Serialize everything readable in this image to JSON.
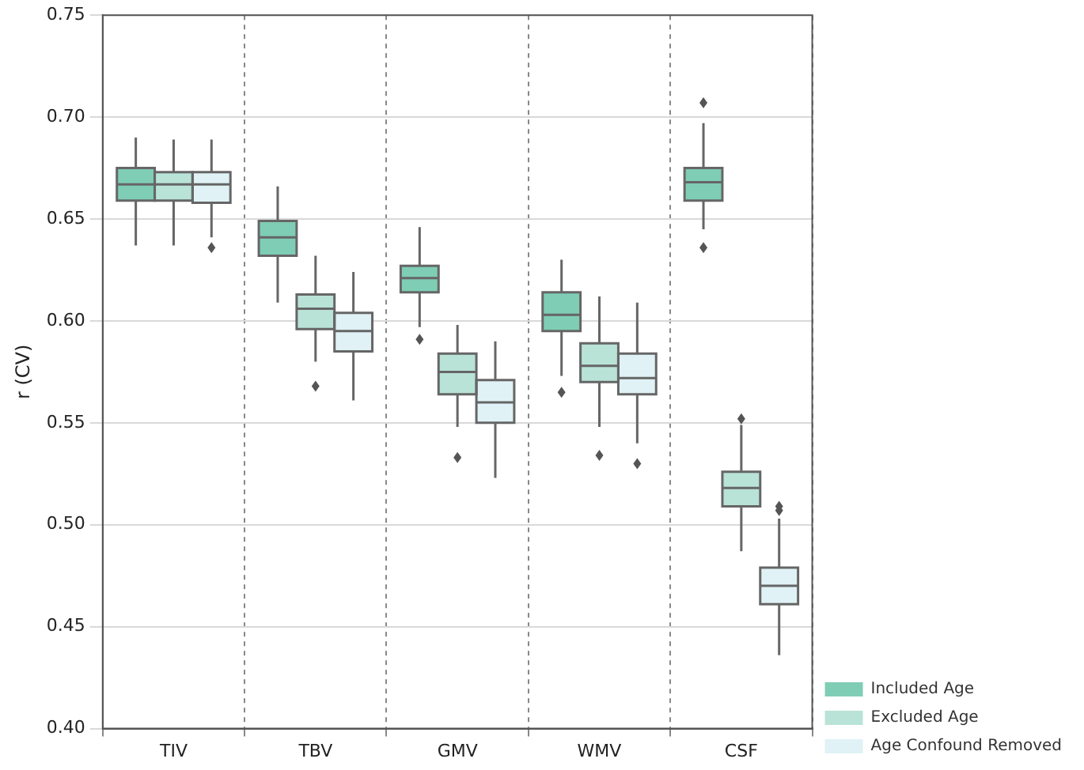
{
  "chart_data": {
    "type": "box",
    "ylabel": "r (CV)",
    "categories": [
      "TIV",
      "TBV",
      "GMV",
      "WMV",
      "CSF"
    ],
    "ylim": [
      0.4,
      0.75
    ],
    "yticks": [
      {
        "value": 0.4,
        "label": "0.40"
      },
      {
        "value": 0.45,
        "label": "0.45"
      },
      {
        "value": 0.5,
        "label": "0.50"
      },
      {
        "value": 0.55,
        "label": "0.55"
      },
      {
        "value": 0.6,
        "label": "0.60"
      },
      {
        "value": 0.65,
        "label": "0.65"
      },
      {
        "value": 0.7,
        "label": "0.70"
      },
      {
        "value": 0.75,
        "label": "0.75"
      }
    ],
    "grid": true,
    "legend": "bottom right",
    "series": [
      {
        "name": "Included Age",
        "color": "#7fcdb5",
        "boxes": [
          {
            "low": 0.637,
            "q1": 0.659,
            "median": 0.667,
            "q3": 0.675,
            "high": 0.69
          },
          {
            "low": 0.609,
            "q1": 0.632,
            "median": 0.641,
            "q3": 0.649,
            "high": 0.666
          },
          {
            "low": 0.597,
            "q1": 0.614,
            "median": 0.621,
            "q3": 0.627,
            "high": 0.646,
            "outliers": [
              0.591
            ]
          },
          {
            "low": 0.573,
            "q1": 0.595,
            "median": 0.603,
            "q3": 0.614,
            "high": 0.63,
            "outliers": [
              0.565
            ]
          },
          {
            "low": 0.645,
            "q1": 0.659,
            "median": 0.668,
            "q3": 0.675,
            "high": 0.697,
            "outliers": [
              0.707,
              0.636
            ]
          }
        ]
      },
      {
        "name": "Excluded Age",
        "color": "#b9e3d7",
        "boxes": [
          {
            "low": 0.637,
            "q1": 0.659,
            "median": 0.667,
            "q3": 0.673,
            "high": 0.689
          },
          {
            "low": 0.58,
            "q1": 0.596,
            "median": 0.606,
            "q3": 0.613,
            "high": 0.632,
            "outliers": [
              0.568
            ]
          },
          {
            "low": 0.548,
            "q1": 0.564,
            "median": 0.575,
            "q3": 0.584,
            "high": 0.598,
            "outliers": [
              0.533
            ]
          },
          {
            "low": 0.548,
            "q1": 0.57,
            "median": 0.578,
            "q3": 0.589,
            "high": 0.612,
            "outliers": [
              0.534
            ]
          },
          {
            "low": 0.487,
            "q1": 0.509,
            "median": 0.518,
            "q3": 0.526,
            "high": 0.549,
            "outliers": [
              0.552
            ]
          }
        ]
      },
      {
        "name": "Age Confound Removed",
        "color": "#e0f2f5",
        "boxes": [
          {
            "low": 0.641,
            "q1": 0.658,
            "median": 0.667,
            "q3": 0.673,
            "high": 0.689,
            "outliers": [
              0.636
            ]
          },
          {
            "low": 0.561,
            "q1": 0.585,
            "median": 0.595,
            "q3": 0.604,
            "high": 0.624
          },
          {
            "low": 0.523,
            "q1": 0.55,
            "median": 0.56,
            "q3": 0.571,
            "high": 0.59
          },
          {
            "low": 0.54,
            "q1": 0.564,
            "median": 0.572,
            "q3": 0.584,
            "high": 0.609,
            "outliers": [
              0.53
            ]
          },
          {
            "low": 0.436,
            "q1": 0.461,
            "median": 0.47,
            "q3": 0.479,
            "high": 0.503,
            "outliers": [
              0.507,
              0.509
            ]
          }
        ]
      }
    ]
  }
}
